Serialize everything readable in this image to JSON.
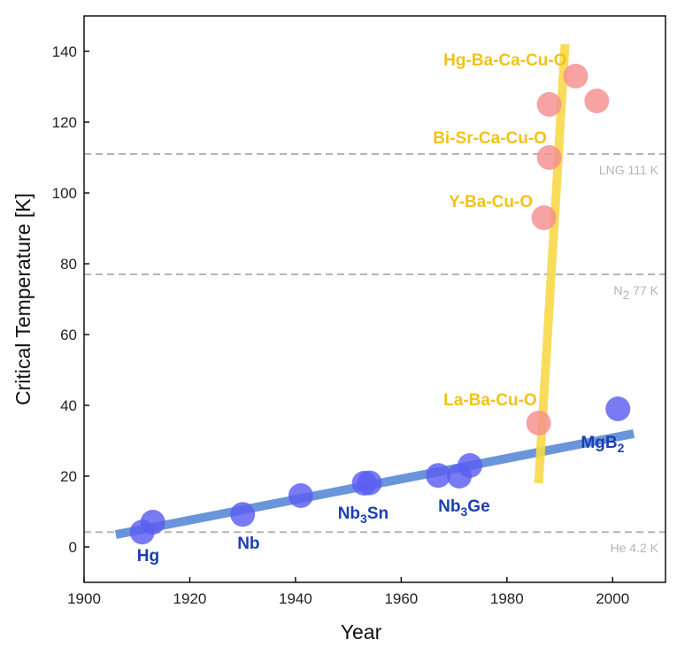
{
  "chart_data": {
    "type": "scatter",
    "xlabel": "Year",
    "ylabel": "Critical Temperature [K]",
    "xlim": [
      1900,
      2010
    ],
    "ylim": [
      -10,
      150
    ],
    "xticks": [
      1900,
      1920,
      1940,
      1960,
      1980,
      2000
    ],
    "yticks": [
      0,
      20,
      40,
      60,
      80,
      100,
      120,
      140
    ],
    "grid": false,
    "reference_lines": [
      {
        "value": 111,
        "label": "LNG 111 K",
        "color": "#b5b5b5"
      },
      {
        "value": 77,
        "label": "N",
        "sub": "2",
        "suffix": " 77 K",
        "color": "#b5b5b5"
      },
      {
        "value": 4.2,
        "label": "He 4.2 K",
        "color": "#b5b5b5"
      }
    ],
    "series": [
      {
        "color": "#5a5ef0",
        "points": [
          [
            1911,
            4.2
          ],
          [
            1913,
            7
          ],
          [
            1930,
            9.2
          ],
          [
            1941,
            14.5
          ],
          [
            1953,
            18
          ],
          [
            1954,
            18.1
          ],
          [
            1967,
            20.2
          ],
          [
            1971,
            20
          ],
          [
            1973,
            23
          ],
          [
            2001,
            39
          ]
        ]
      },
      {
        "color": "#f58f8f",
        "points": [
          [
            1986,
            35
          ],
          [
            1987,
            93
          ],
          [
            1988,
            110
          ],
          [
            1988,
            125
          ],
          [
            1993,
            133
          ],
          [
            1997,
            126
          ]
        ]
      }
    ],
    "trend_lines": [
      {
        "color": "#5b8ad6",
        "from": [
          1906,
          3.5
        ],
        "to": [
          2004,
          32
        ]
      },
      {
        "color": "#f7d94a",
        "from": [
          1986,
          18
        ],
        "to": [
          1991,
          142
        ]
      }
    ],
    "annotations": [
      {
        "text": "Hg",
        "x": 1910,
        "y": -4,
        "color": "#1a3fb0"
      },
      {
        "text": "Nb",
        "x": 1929,
        "y": -0.5,
        "color": "#1a3fb0"
      },
      {
        "text": "Nb",
        "sub": "3",
        "suffix": "Sn",
        "x": 1948,
        "y": 8,
        "color": "#1a3fb0"
      },
      {
        "text": "Nb",
        "sub": "3",
        "suffix": "Ge",
        "x": 1967,
        "y": 10,
        "color": "#1a3fb0"
      },
      {
        "text": "MgB",
        "sub": "2",
        "suffix": "",
        "x": 1994,
        "y": 28,
        "color": "#1a3fb0"
      },
      {
        "text": "La-Ba-Cu-O",
        "x": 1968,
        "y": 40,
        "color": "#f2c21a"
      },
      {
        "text": "Y-Ba-Cu-O",
        "x": 1969,
        "y": 96,
        "color": "#f2c21a"
      },
      {
        "text": "Bi-Sr-Ca-Cu-O",
        "x": 1966,
        "y": 114,
        "color": "#f2c21a"
      },
      {
        "text": "Hg-Ba-Ca-Cu-O",
        "x": 1968,
        "y": 136,
        "color": "#f2c21a"
      }
    ]
  }
}
